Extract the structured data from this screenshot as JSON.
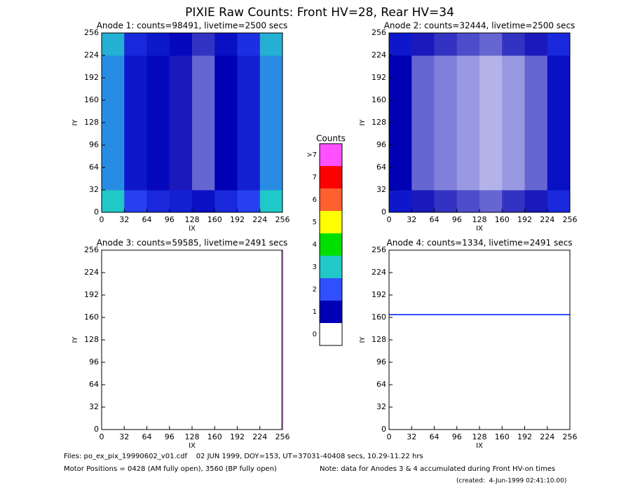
{
  "title": "PIXIE Raw Counts:  Front HV=28, Rear HV=34",
  "colorbar": {
    "title": "Counts",
    "labels": [
      "0",
      "1",
      "2",
      "3",
      "4",
      "5",
      "6",
      "7",
      ">7"
    ],
    "colors": [
      "#ffffff",
      "#0000b4",
      "#3050ff",
      "#20c8c8",
      "#00e000",
      "#ffff00",
      "#ff6030",
      "#ff0000",
      "#ff50ff"
    ]
  },
  "footer": {
    "files": "Files: po_ex_pix_19990602_v01.cdf    02 JUN 1999, DOY=153, UT=37031-40408 secs, 10.29-11.22 hrs",
    "motor": "Motor Positions = 0428 (AM fully open), 3560 (BP fully open)",
    "note": "Note: data for Anodes 3 & 4 accumulated during Front HV-on times",
    "created": "(created:  4-Jun-1999 02:41:10.00)"
  },
  "chart_data": [
    {
      "type": "heatmap",
      "title": "Anode 1: counts=98491, livetime=2500 secs",
      "xlabel": "IX",
      "ylabel": "IY",
      "xlim": [
        0,
        256
      ],
      "ylim": [
        0,
        256
      ],
      "xticks": [
        0,
        32,
        64,
        96,
        128,
        160,
        192,
        224,
        256
      ],
      "yticks": [
        0,
        32,
        64,
        96,
        128,
        160,
        192,
        224,
        256
      ],
      "z": [
        [
          3,
          1.8,
          1.5,
          1.4,
          1.2,
          1.5,
          1.8,
          3
        ],
        [
          2.5,
          1.3,
          1.1,
          0.9,
          0.6,
          1,
          1.4,
          2.5
        ],
        [
          2.5,
          1.3,
          1.1,
          0.9,
          0.6,
          1,
          1.4,
          2.5
        ],
        [
          2.5,
          1.3,
          1.1,
          0.9,
          0.6,
          1,
          1.4,
          2.5
        ],
        [
          2.5,
          1.3,
          1.1,
          0.9,
          0.6,
          1,
          1.4,
          2.5
        ],
        [
          2.5,
          1.3,
          1.1,
          0.9,
          0.6,
          1,
          1.4,
          2.5
        ],
        [
          2.5,
          1.3,
          1.1,
          0.9,
          0.6,
          1,
          1.4,
          2.5
        ],
        [
          2.8,
          1.5,
          1.3,
          1.1,
          0.8,
          1.2,
          1.6,
          2.8
        ]
      ]
    },
    {
      "type": "heatmap",
      "title": "Anode 2: counts=32444, livetime=2500 secs",
      "xlabel": "IX",
      "ylabel": "IY",
      "xlim": [
        0,
        256
      ],
      "ylim": [
        0,
        256
      ],
      "xticks": [
        0,
        32,
        64,
        96,
        128,
        160,
        192,
        224,
        256
      ],
      "yticks": [
        0,
        32,
        64,
        96,
        128,
        160,
        192,
        224,
        256
      ],
      "z": [
        [
          1.3,
          0.9,
          0.8,
          0.7,
          0.6,
          0.8,
          0.9,
          1.5
        ],
        [
          1,
          0.6,
          0.5,
          0.4,
          0.3,
          0.4,
          0.6,
          1.2
        ],
        [
          1,
          0.6,
          0.5,
          0.4,
          0.3,
          0.4,
          0.6,
          1.2
        ],
        [
          1,
          0.6,
          0.5,
          0.4,
          0.3,
          0.4,
          0.6,
          1.2
        ],
        [
          1,
          0.6,
          0.5,
          0.4,
          0.3,
          0.4,
          0.6,
          1.2
        ],
        [
          1,
          0.6,
          0.5,
          0.4,
          0.3,
          0.4,
          0.6,
          1.2
        ],
        [
          1,
          0.6,
          0.5,
          0.4,
          0.3,
          0.4,
          0.6,
          1.2
        ],
        [
          1.3,
          0.9,
          0.8,
          0.7,
          0.6,
          0.8,
          0.9,
          1.5
        ]
      ]
    },
    {
      "type": "heatmap",
      "title": "Anode 3: counts=59585, livetime=2491 secs",
      "xlabel": "IX",
      "ylabel": "IY",
      "xlim": [
        0,
        256
      ],
      "ylim": [
        0,
        256
      ],
      "xticks": [
        0,
        32,
        64,
        96,
        128,
        160,
        192,
        224,
        256
      ],
      "yticks": [
        0,
        32,
        64,
        96,
        128,
        160,
        192,
        224,
        256
      ],
      "lines": [
        {
          "color": "#ff50ff",
          "x": [
            255,
            255
          ],
          "y": [
            0,
            256
          ]
        }
      ]
    },
    {
      "type": "heatmap",
      "title": "Anode 4: counts=1334, livetime=2491 secs",
      "xlabel": "IX",
      "ylabel": "IY",
      "xlim": [
        0,
        256
      ],
      "ylim": [
        0,
        256
      ],
      "xticks": [
        0,
        32,
        64,
        96,
        128,
        160,
        192,
        224,
        256
      ],
      "yticks": [
        0,
        32,
        64,
        96,
        128,
        160,
        192,
        224,
        256
      ],
      "lines": [
        {
          "color": "#3050ff",
          "x": [
            0,
            256
          ],
          "y": [
            164,
            164
          ]
        }
      ]
    }
  ]
}
